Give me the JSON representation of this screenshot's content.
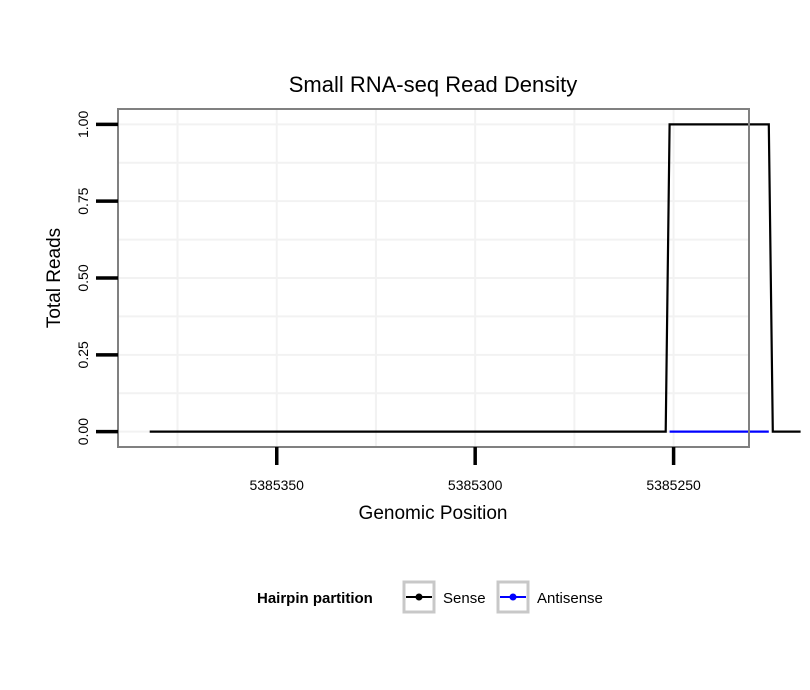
{
  "chart_data": {
    "type": "line",
    "title": "Small RNA-seq Read Density",
    "xlabel": "Genomic Position",
    "ylabel": "Total Reads",
    "x_reversed": true,
    "xlim": [
      5385231,
      5385390
    ],
    "ylim": [
      -0.05,
      1.05
    ],
    "x_ticks": [
      5385350,
      5385300,
      5385250
    ],
    "x_tick_labels": [
      "5385350",
      "5385300",
      "5385250"
    ],
    "y_ticks": [
      0.0,
      0.25,
      0.5,
      0.75,
      1.0
    ],
    "y_tick_labels": [
      "0.00",
      "0.25",
      "0.50",
      "0.75",
      "1.00"
    ],
    "grid": true,
    "legend": {
      "title": "Hairpin partition",
      "position": "bottom"
    },
    "series": [
      {
        "name": "Sense",
        "color": "#000000",
        "x": [
          5385382,
          5385252,
          5385251,
          5385226,
          5385225,
          5385218
        ],
        "y": [
          0,
          0,
          1,
          1,
          0,
          0
        ]
      },
      {
        "name": "Antisense",
        "color": "#0000ff",
        "x": [
          5385251,
          5385226
        ],
        "y": [
          0,
          0
        ]
      }
    ]
  }
}
